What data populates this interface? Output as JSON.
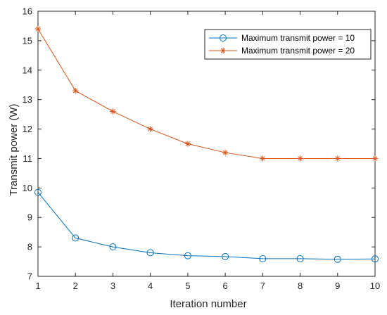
{
  "chart_data": {
    "type": "line",
    "title": "",
    "xlabel": "Iteration number",
    "ylabel": "Transmit power (W)",
    "x": [
      1,
      2,
      3,
      4,
      5,
      6,
      7,
      8,
      9,
      10
    ],
    "xlim": [
      1,
      10
    ],
    "ylim": [
      7,
      16
    ],
    "xticks": [
      "1",
      "2",
      "3",
      "4",
      "5",
      "6",
      "7",
      "8",
      "9",
      "10"
    ],
    "yticks": [
      "7",
      "8",
      "9",
      "10",
      "11",
      "12",
      "13",
      "14",
      "15",
      "16"
    ],
    "grid": false,
    "legend_position": "top-right",
    "series": [
      {
        "name": "Maximum transmit power = 10",
        "marker": "circle",
        "color": "#0072BD",
        "values": [
          9.85,
          8.3,
          8.0,
          7.8,
          7.7,
          7.67,
          7.6,
          7.6,
          7.58,
          7.59
        ]
      },
      {
        "name": "Maximum transmit power = 20",
        "marker": "asterisk",
        "color": "#D95319",
        "values": [
          15.4,
          13.3,
          12.6,
          12.0,
          11.5,
          11.2,
          11.0,
          11.0,
          11.0,
          11.0
        ]
      }
    ]
  }
}
